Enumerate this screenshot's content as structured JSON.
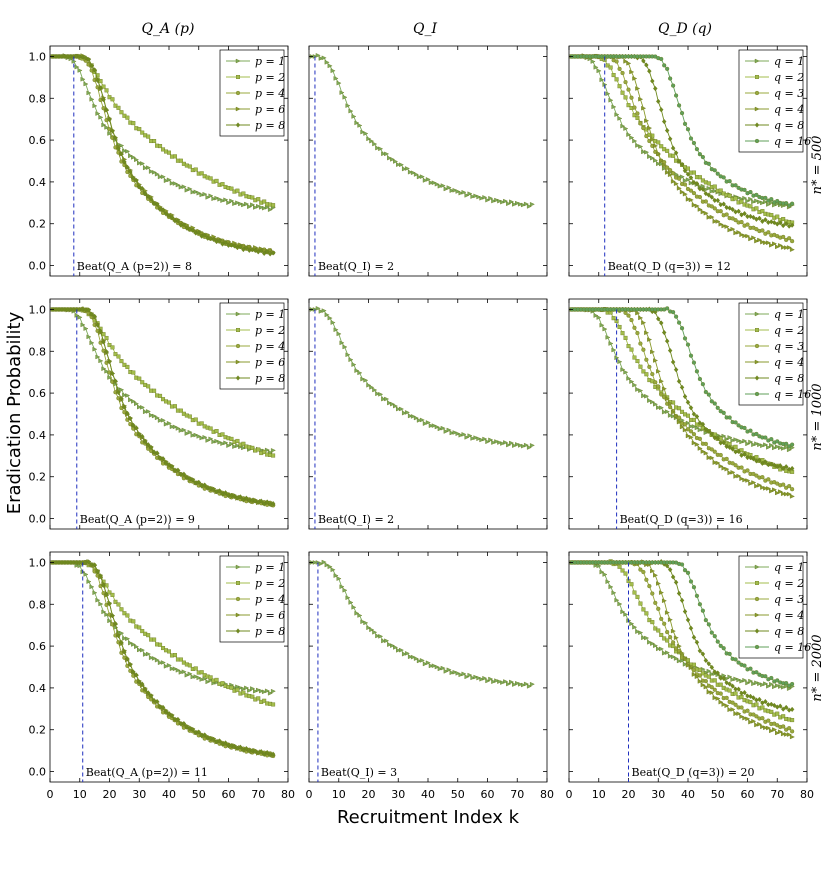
{
  "figure": {
    "ylabel": "Eradication Probability",
    "xlabel": "Recruitment Index k"
  },
  "columns": [
    "Q_A (p)",
    "Q_I",
    "Q_D (q)"
  ],
  "rows": [
    "n* = 500",
    "n* = 1000",
    "n* = 2000"
  ],
  "colors": {
    "c1": "#7caa5a",
    "c2": "#a3bd4c",
    "c3": "#9aa83e",
    "c4": "#8a9a2c",
    "c5": "#6f8a1f",
    "c6": "#5f9f5a",
    "beat_line": "#1f2fbf"
  },
  "chart_data": [
    {
      "type": "line",
      "panel": "Q_A, n*=500",
      "column": "Q_A (p)",
      "row": "n* = 500",
      "xlim": [
        0,
        80
      ],
      "ylim": [
        -0.05,
        1.05
      ],
      "xticks": [
        0,
        10,
        20,
        30,
        40,
        50,
        60,
        70,
        80
      ],
      "yticks": [
        0.0,
        0.2,
        0.4,
        0.6,
        0.8,
        1.0
      ],
      "beat": {
        "k": 8,
        "label": "Beat(Q_A (p=2)) = 8"
      },
      "series": [
        {
          "name": "p = 1",
          "marker": "tri",
          "plateau": 4,
          "d": 8,
          "f": 0.23,
          "a": 0.33
        },
        {
          "name": "p = 2",
          "marker": "sq",
          "plateau": 8,
          "d": 8,
          "f": 0.06,
          "a": 0.17
        },
        {
          "name": "p = 4",
          "marker": "circ",
          "plateau": 9,
          "d": 8,
          "f": 0.03,
          "a": 0.4
        },
        {
          "name": "p = 6",
          "marker": "tri",
          "plateau": 10,
          "d": 8,
          "f": 0.03,
          "a": 0.4
        },
        {
          "name": "p = 8",
          "marker": "dia",
          "plateau": 10,
          "d": 8,
          "f": 0.02,
          "a": 0.4
        }
      ]
    },
    {
      "type": "line",
      "panel": "Q_I, n*=500",
      "column": "Q_I",
      "row": "n* = 500",
      "xlim": [
        0,
        80
      ],
      "ylim": [
        -0.05,
        1.05
      ],
      "xticks": [
        0,
        10,
        20,
        30,
        40,
        50,
        60,
        70,
        80
      ],
      "yticks": [
        0.0,
        0.2,
        0.4,
        0.6,
        0.8,
        1.0
      ],
      "beat": {
        "k": 2,
        "label": "Beat(Q_I) = 2"
      },
      "series": [
        {
          "name": "Q_I",
          "marker": "tri",
          "plateau": 2,
          "d": 8,
          "f": 0.25,
          "a": 0.33
        }
      ]
    },
    {
      "type": "line",
      "panel": "Q_D, n*=500",
      "column": "Q_D (q)",
      "row": "n* = 500",
      "xlim": [
        0,
        80
      ],
      "ylim": [
        -0.05,
        1.05
      ],
      "xticks": [
        0,
        10,
        20,
        30,
        40,
        50,
        60,
        70,
        80
      ],
      "yticks": [
        0.0,
        0.2,
        0.4,
        0.6,
        0.8,
        1.0
      ],
      "beat": {
        "k": 12,
        "label": "Beat(Q_D (q=3)) = 12"
      },
      "series": [
        {
          "name": "q = 1",
          "marker": "tri",
          "plateau": 4,
          "d": 8,
          "f": 0.25,
          "a": 0.35
        },
        {
          "name": "q = 2",
          "marker": "sq",
          "plateau": 8,
          "d": 8,
          "f": 0.02,
          "a": 0.2
        },
        {
          "name": "q = 3",
          "marker": "circ",
          "plateau": 12,
          "d": 8,
          "f": 0.03,
          "a": 0.3
        },
        {
          "name": "q = 4",
          "marker": "tri",
          "plateau": 16,
          "d": 8,
          "f": 0.03,
          "a": 0.4
        },
        {
          "name": "q = 8",
          "marker": "dia",
          "plateau": 22,
          "d": 8,
          "f": 0.16,
          "a": 0.5
        },
        {
          "name": "q = 16",
          "marker": "circ",
          "plateau": 28,
          "d": 8,
          "f": 0.25,
          "a": 0.5
        }
      ]
    },
    {
      "type": "line",
      "panel": "Q_A, n*=1000",
      "column": "Q_A (p)",
      "row": "n* = 1000",
      "xlim": [
        0,
        80
      ],
      "ylim": [
        -0.05,
        1.05
      ],
      "xticks": [
        0,
        10,
        20,
        30,
        40,
        50,
        60,
        70,
        80
      ],
      "yticks": [
        0.0,
        0.2,
        0.4,
        0.6,
        0.8,
        1.0
      ],
      "beat": {
        "k": 9,
        "label": "Beat(Q_A (p=2)) = 9"
      },
      "series": [
        {
          "name": "p = 1",
          "marker": "tri",
          "plateau": 5,
          "d": 8,
          "f": 0.28,
          "a": 0.33
        },
        {
          "name": "p = 2",
          "marker": "sq",
          "plateau": 9,
          "d": 8,
          "f": 0.07,
          "a": 0.17
        },
        {
          "name": "p = 4",
          "marker": "circ",
          "plateau": 10,
          "d": 8,
          "f": 0.03,
          "a": 0.4
        },
        {
          "name": "p = 6",
          "marker": "tri",
          "plateau": 11,
          "d": 8,
          "f": 0.03,
          "a": 0.4
        },
        {
          "name": "p = 8",
          "marker": "dia",
          "plateau": 11,
          "d": 8,
          "f": 0.03,
          "a": 0.4
        }
      ]
    },
    {
      "type": "line",
      "panel": "Q_I, n*=1000",
      "column": "Q_I",
      "row": "n* = 1000",
      "xlim": [
        0,
        80
      ],
      "ylim": [
        -0.05,
        1.05
      ],
      "xticks": [
        0,
        10,
        20,
        30,
        40,
        50,
        60,
        70,
        80
      ],
      "yticks": [
        0.0,
        0.2,
        0.4,
        0.6,
        0.8,
        1.0
      ],
      "beat": {
        "k": 2,
        "label": "Beat(Q_I) = 2"
      },
      "series": [
        {
          "name": "Q_I",
          "marker": "tri",
          "plateau": 2,
          "d": 8,
          "f": 0.31,
          "a": 0.33
        }
      ]
    },
    {
      "type": "line",
      "panel": "Q_D, n*=1000",
      "column": "Q_D (q)",
      "row": "n* = 1000",
      "xlim": [
        0,
        80
      ],
      "ylim": [
        -0.05,
        1.05
      ],
      "xticks": [
        0,
        10,
        20,
        30,
        40,
        50,
        60,
        70,
        80
      ],
      "yticks": [
        0.0,
        0.2,
        0.4,
        0.6,
        0.8,
        1.0
      ],
      "beat": {
        "k": 16,
        "label": "Beat(Q_D (q=3)) = 16"
      },
      "series": [
        {
          "name": "q = 1",
          "marker": "tri",
          "plateau": 5,
          "d": 8,
          "f": 0.3,
          "a": 0.35
        },
        {
          "name": "q = 2",
          "marker": "sq",
          "plateau": 10,
          "d": 8,
          "f": 0.03,
          "a": 0.2
        },
        {
          "name": "q = 3",
          "marker": "circ",
          "plateau": 16,
          "d": 8,
          "f": 0.04,
          "a": 0.3
        },
        {
          "name": "q = 4",
          "marker": "tri",
          "plateau": 20,
          "d": 8,
          "f": 0.05,
          "a": 0.4
        },
        {
          "name": "q = 8",
          "marker": "dia",
          "plateau": 26,
          "d": 8,
          "f": 0.2,
          "a": 0.5
        },
        {
          "name": "q = 16",
          "marker": "circ",
          "plateau": 32,
          "d": 8,
          "f": 0.3,
          "a": 0.5
        }
      ]
    },
    {
      "type": "line",
      "panel": "Q_A, n*=2000",
      "column": "Q_A (p)",
      "row": "n* = 2000",
      "xlim": [
        0,
        80
      ],
      "ylim": [
        -0.05,
        1.05
      ],
      "xticks": [
        0,
        10,
        20,
        30,
        40,
        50,
        60,
        70,
        80
      ],
      "yticks": [
        0.0,
        0.2,
        0.4,
        0.6,
        0.8,
        1.0
      ],
      "beat": {
        "k": 11,
        "label": "Beat(Q_A (p=2)) = 11"
      },
      "series": [
        {
          "name": "p = 1",
          "marker": "tri",
          "plateau": 6,
          "d": 8,
          "f": 0.34,
          "a": 0.33
        },
        {
          "name": "p = 2",
          "marker": "sq",
          "plateau": 10,
          "d": 8,
          "f": 0.09,
          "a": 0.17
        },
        {
          "name": "p = 4",
          "marker": "circ",
          "plateau": 11,
          "d": 8,
          "f": 0.04,
          "a": 0.4
        },
        {
          "name": "p = 6",
          "marker": "tri",
          "plateau": 12,
          "d": 8,
          "f": 0.04,
          "a": 0.4
        },
        {
          "name": "p = 8",
          "marker": "dia",
          "plateau": 12,
          "d": 8,
          "f": 0.04,
          "a": 0.4
        }
      ]
    },
    {
      "type": "line",
      "panel": "Q_I, n*=2000",
      "column": "Q_I",
      "row": "n* = 2000",
      "xlim": [
        0,
        80
      ],
      "ylim": [
        -0.05,
        1.05
      ],
      "xticks": [
        0,
        10,
        20,
        30,
        40,
        50,
        60,
        70,
        80
      ],
      "yticks": [
        0.0,
        0.2,
        0.4,
        0.6,
        0.8,
        1.0
      ],
      "beat": {
        "k": 3,
        "label": "Beat(Q_I) = 3"
      },
      "series": [
        {
          "name": "Q_I",
          "marker": "tri",
          "plateau": 3,
          "d": 8,
          "f": 0.38,
          "a": 0.33
        }
      ]
    },
    {
      "type": "line",
      "panel": "Q_D, n*=2000",
      "column": "Q_D (q)",
      "row": "n* = 2000",
      "xlim": [
        0,
        80
      ],
      "ylim": [
        -0.05,
        1.05
      ],
      "xticks": [
        0,
        10,
        20,
        30,
        40,
        50,
        60,
        70,
        80
      ],
      "yticks": [
        0.0,
        0.2,
        0.4,
        0.6,
        0.8,
        1.0
      ],
      "beat": {
        "k": 20,
        "label": "Beat(Q_D (q=3)) = 20"
      },
      "series": [
        {
          "name": "q = 1",
          "marker": "tri",
          "plateau": 6,
          "d": 8,
          "f": 0.37,
          "a": 0.35
        },
        {
          "name": "q = 2",
          "marker": "sq",
          "plateau": 13,
          "d": 8,
          "f": 0.04,
          "a": 0.2
        },
        {
          "name": "q = 3",
          "marker": "circ",
          "plateau": 20,
          "d": 8,
          "f": 0.08,
          "a": 0.3
        },
        {
          "name": "q = 4",
          "marker": "tri",
          "plateau": 24,
          "d": 8,
          "f": 0.1,
          "a": 0.4
        },
        {
          "name": "q = 8",
          "marker": "dia",
          "plateau": 30,
          "d": 8,
          "f": 0.25,
          "a": 0.5
        },
        {
          "name": "q = 16",
          "marker": "circ",
          "plateau": 35,
          "d": 8,
          "f": 0.36,
          "a": 0.5
        }
      ]
    }
  ]
}
